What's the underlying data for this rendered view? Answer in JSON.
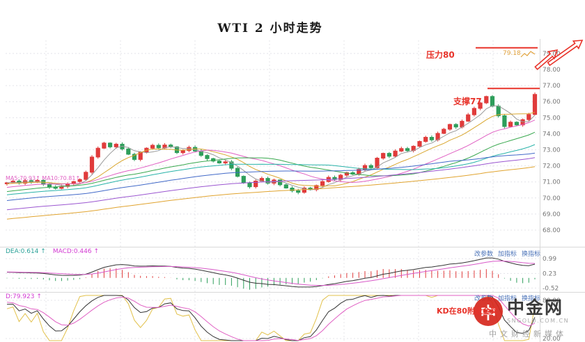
{
  "title": "WTI 2 小时走势",
  "colors": {
    "up": "#e03b3b",
    "down": "#2e9e5b",
    "annotation": "#e8332a",
    "marker": "#e2a33d",
    "dif_line": "#333333",
    "dea_line": "#d858c8",
    "link": "#4a72b8"
  },
  "y_axis": {
    "main": [
      "79.00",
      "78.00",
      "77.00",
      "76.00",
      "75.00",
      "74.00",
      "73.00",
      "72.00",
      "71.00",
      "70.00",
      "69.00",
      "68.00"
    ],
    "macd": [
      "0.99",
      "0.23",
      "-0.52"
    ],
    "kdj": [
      "80.00",
      "20.00"
    ]
  },
  "annotations": {
    "resistance": "压力80",
    "support": "支撑77",
    "price_marker": "79.18",
    "kdj_note": "KD在80附近金叉"
  },
  "indicator_labels": {
    "ma": "MA5:70.93↑ MA10:70.81↑",
    "macd_dea": "DEA:0.614 ↑",
    "macd_macd": "MACD:0.446 ↑",
    "kdj_d": "D:79.923 ↑"
  },
  "links": {
    "change_params": "改参数",
    "add_indicator": "加指标",
    "switch_indicator": "换指标"
  },
  "watermark": {
    "logo_glyph": "中",
    "brand": "中金网",
    "domain": "SNGOLD.COM.CN",
    "tagline": "中文财经新媒体"
  },
  "chart_data": {
    "type": "candlestick",
    "title": "WTI 2 小时走势",
    "timeframe": "2小时",
    "price_range": [
      67.2,
      79.7
    ],
    "resistance_level": 80,
    "support_level": 77,
    "latest_marker": 79.18,
    "closes": [
      70.95,
      71.05,
      70.92,
      71.08,
      70.98,
      71.1,
      70.85,
      70.68,
      70.6,
      70.72,
      70.88,
      71.02,
      71.15,
      71.6,
      72.55,
      73.1,
      73.42,
      73.18,
      73.35,
      73.05,
      72.72,
      72.4,
      72.85,
      73.1,
      73.28,
      73.12,
      73.3,
      73.18,
      72.82,
      72.95,
      73.15,
      72.92,
      72.65,
      72.45,
      72.3,
      72.18,
      72.25,
      71.85,
      71.35,
      70.95,
      70.7,
      71.05,
      71.22,
      70.92,
      71.12,
      70.82,
      70.62,
      70.45,
      70.35,
      70.62,
      70.52,
      70.78,
      71.02,
      71.28,
      71.15,
      71.42,
      71.58,
      71.48,
      71.78,
      72.02,
      71.88,
      72.48,
      72.78,
      72.6,
      72.92,
      73.08,
      72.95,
      73.22,
      73.52,
      73.78,
      73.62,
      74.02,
      74.28,
      74.58,
      74.42,
      74.78,
      75.18,
      75.58,
      75.92,
      76.32,
      75.72,
      75.12,
      74.45,
      74.72,
      74.55,
      74.88,
      75.2,
      76.45
    ],
    "moving_averages": [
      5,
      10,
      20,
      30,
      40,
      60,
      90,
      120
    ],
    "indicators": {
      "macd": {
        "dea": 0.614,
        "macd": 0.446,
        "axis_range": [
          -0.7,
          1.35
        ]
      },
      "kdj": {
        "d": 79.923,
        "axis_ticks": [
          80,
          20
        ]
      }
    }
  }
}
